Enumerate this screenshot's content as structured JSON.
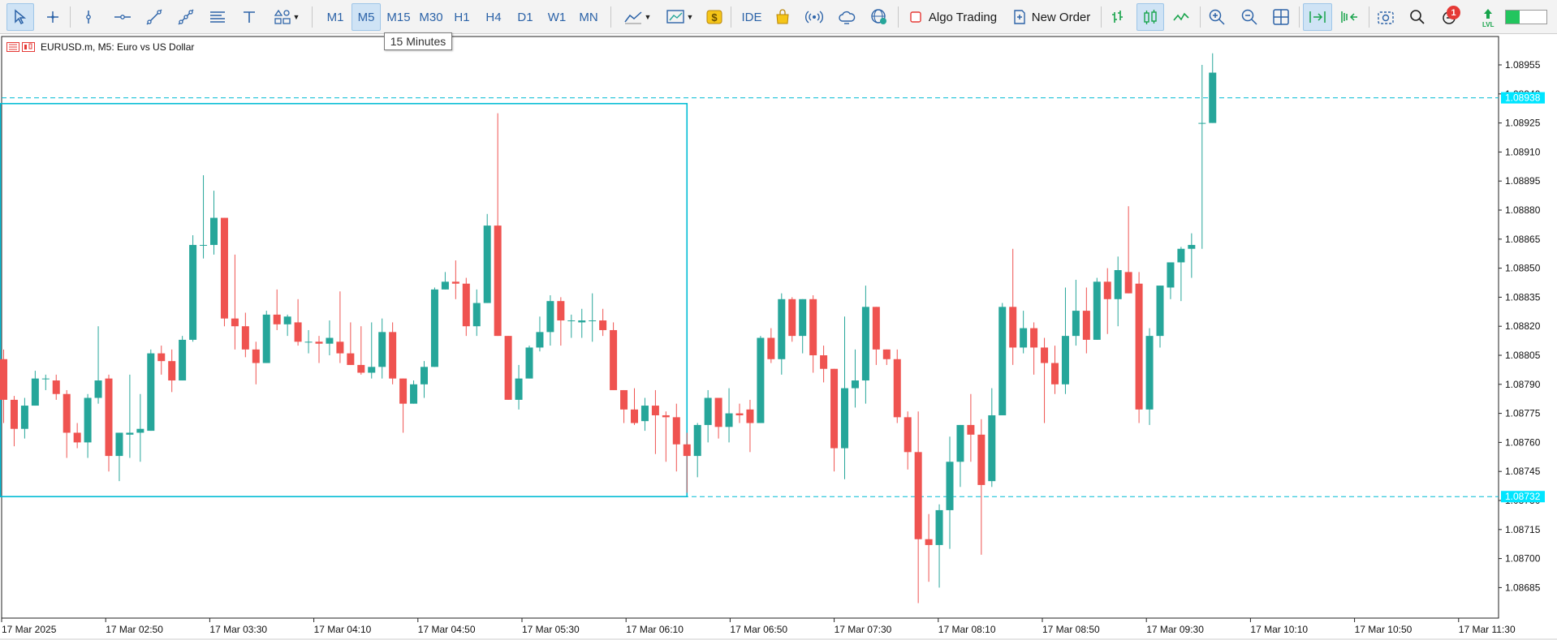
{
  "toolbar": {
    "timeframes": [
      "M1",
      "M5",
      "M15",
      "M30",
      "H1",
      "H4",
      "D1",
      "W1",
      "MN"
    ],
    "active_timeframe": "M5",
    "hover_timeframe": "M15",
    "ide_label": "IDE",
    "algo_label": "Algo Trading",
    "new_order_label": "New Order",
    "notification_count": "1",
    "lvl_label": "LVL"
  },
  "tooltip": {
    "text": "15 Minutes"
  },
  "chart": {
    "title": "EURUSD.m, M5:  Euro vs US Dollar",
    "colors": {
      "bull": "#26a69a",
      "bear": "#ef5350",
      "line": "#00bcd4",
      "label_bg": "#00e5ff"
    }
  },
  "chart_data": {
    "type": "candlestick",
    "symbol": "EURUSD.m",
    "timeframe": "M5",
    "description": "Euro vs US Dollar",
    "y_ticks": [
      "1.08955",
      "1.08940",
      "1.08925",
      "1.08910",
      "1.08895",
      "1.08880",
      "1.08865",
      "1.08850",
      "1.08835",
      "1.08820",
      "1.08805",
      "1.08790",
      "1.08775",
      "1.08760",
      "1.08745",
      "1.08730",
      "1.08715",
      "1.08700",
      "1.08685"
    ],
    "ylim": [
      1.0867,
      1.0897
    ],
    "x_labels": [
      "17 Mar 2025",
      "17 Mar 02:50",
      "17 Mar 03:30",
      "17 Mar 04:10",
      "17 Mar 04:50",
      "17 Mar 05:30",
      "17 Mar 06:10",
      "17 Mar 06:50",
      "17 Mar 07:30",
      "17 Mar 08:10",
      "17 Mar 08:50",
      "17 Mar 09:30",
      "17 Mar 10:10",
      "17 Mar 10:50",
      "17 Mar 11:30"
    ],
    "levels": [
      {
        "price": 1.08938,
        "label": "1.08938"
      },
      {
        "price": 1.08732,
        "label": "1.08732"
      }
    ],
    "range_box": {
      "start_candle": 0,
      "end_candle": 65,
      "high": 1.08935,
      "low": 1.08732
    },
    "candles": [
      [
        1.08803,
        1.08808,
        1.0877,
        1.08782
      ],
      [
        1.08782,
        1.08784,
        1.08758,
        1.08767
      ],
      [
        1.08767,
        1.08783,
        1.08762,
        1.08779
      ],
      [
        1.08779,
        1.08797,
        1.08779,
        1.08793
      ],
      [
        1.08793,
        1.08795,
        1.08787,
        1.08793
      ],
      [
        1.08792,
        1.08795,
        1.08782,
        1.08785
      ],
      [
        1.08785,
        1.08787,
        1.08752,
        1.08765
      ],
      [
        1.08765,
        1.0877,
        1.08757,
        1.0876
      ],
      [
        1.0876,
        1.08785,
        1.08752,
        1.08783
      ],
      [
        1.08783,
        1.0882,
        1.0878,
        1.08792
      ],
      [
        1.08793,
        1.08795,
        1.08745,
        1.08753
      ],
      [
        1.08753,
        1.08765,
        1.0874,
        1.08765
      ],
      [
        1.08764,
        1.08795,
        1.08752,
        1.08765
      ],
      [
        1.08765,
        1.08785,
        1.0875,
        1.08767
      ],
      [
        1.08766,
        1.08808,
        1.08766,
        1.08806
      ],
      [
        1.08806,
        1.0881,
        1.08795,
        1.08802
      ],
      [
        1.08802,
        1.08808,
        1.08786,
        1.08792
      ],
      [
        1.08792,
        1.08815,
        1.08792,
        1.08813
      ],
      [
        1.08813,
        1.08867,
        1.08812,
        1.08862
      ],
      [
        1.08862,
        1.08898,
        1.08855,
        1.08862
      ],
      [
        1.08862,
        1.0889,
        1.08857,
        1.08876
      ],
      [
        1.08876,
        1.08876,
        1.0882,
        1.08824
      ],
      [
        1.08824,
        1.08857,
        1.08808,
        1.0882
      ],
      [
        1.0882,
        1.08827,
        1.08804,
        1.08808
      ],
      [
        1.08808,
        1.08812,
        1.0879,
        1.08801
      ],
      [
        1.08801,
        1.08828,
        1.08801,
        1.08826
      ],
      [
        1.08826,
        1.08839,
        1.08818,
        1.08821
      ],
      [
        1.08821,
        1.08826,
        1.08815,
        1.08825
      ],
      [
        1.08822,
        1.08834,
        1.0881,
        1.08812
      ],
      [
        1.08812,
        1.08818,
        1.08806,
        1.08812
      ],
      [
        1.08812,
        1.08815,
        1.08801,
        1.08811
      ],
      [
        1.08811,
        1.08823,
        1.08805,
        1.08814
      ],
      [
        1.08812,
        1.08838,
        1.08801,
        1.08806
      ],
      [
        1.08806,
        1.08822,
        1.088,
        1.088
      ],
      [
        1.088,
        1.0882,
        1.08795,
        1.08796
      ],
      [
        1.08796,
        1.08822,
        1.08793,
        1.08799
      ],
      [
        1.08799,
        1.08824,
        1.08793,
        1.08817
      ],
      [
        1.08817,
        1.08822,
        1.0879,
        1.08793
      ],
      [
        1.08793,
        1.08793,
        1.08765,
        1.0878
      ],
      [
        1.0878,
        1.08792,
        1.0878,
        1.0879
      ],
      [
        1.0879,
        1.08802,
        1.08783,
        1.08799
      ],
      [
        1.08799,
        1.0884,
        1.08799,
        1.08839
      ],
      [
        1.08839,
        1.08848,
        1.08839,
        1.08843
      ],
      [
        1.08843,
        1.08854,
        1.08834,
        1.08842
      ],
      [
        1.08842,
        1.08845,
        1.08815,
        1.0882
      ],
      [
        1.0882,
        1.08839,
        1.08815,
        1.08832
      ],
      [
        1.08832,
        1.08878,
        1.08832,
        1.08872
      ],
      [
        1.08872,
        1.0893,
        1.08815,
        1.08815
      ],
      [
        1.08815,
        1.08815,
        1.08782,
        1.08782
      ],
      [
        1.08782,
        1.088,
        1.08777,
        1.08793
      ],
      [
        1.08793,
        1.0881,
        1.08793,
        1.08809
      ],
      [
        1.08809,
        1.08825,
        1.08807,
        1.08817
      ],
      [
        1.08817,
        1.08836,
        1.0881,
        1.08833
      ],
      [
        1.08833,
        1.08835,
        1.0881,
        1.08823
      ],
      [
        1.08823,
        1.08826,
        1.08814,
        1.08823
      ],
      [
        1.08822,
        1.08829,
        1.08814,
        1.08823
      ],
      [
        1.08823,
        1.08837,
        1.08812,
        1.08823
      ],
      [
        1.08823,
        1.08829,
        1.08815,
        1.08818
      ],
      [
        1.08818,
        1.08822,
        1.08787,
        1.08787
      ],
      [
        1.08787,
        1.08787,
        1.0877,
        1.08777
      ],
      [
        1.08777,
        1.08788,
        1.08769,
        1.0877
      ],
      [
        1.08771,
        1.08783,
        1.08766,
        1.08779
      ],
      [
        1.08779,
        1.08787,
        1.08754,
        1.08774
      ],
      [
        1.08774,
        1.08776,
        1.0875,
        1.08773
      ],
      [
        1.08773,
        1.0878,
        1.08745,
        1.08759
      ],
      [
        1.08759,
        1.08765,
        1.08734,
        1.08753
      ],
      [
        1.08753,
        1.0877,
        1.08742,
        1.08769
      ],
      [
        1.08769,
        1.08787,
        1.0876,
        1.08783
      ],
      [
        1.08783,
        1.08783,
        1.08762,
        1.08768
      ],
      [
        1.08768,
        1.08788,
        1.0876,
        1.08775
      ],
      [
        1.08775,
        1.0878,
        1.0877,
        1.08774
      ],
      [
        1.08777,
        1.08782,
        1.08755,
        1.0877
      ],
      [
        1.0877,
        1.08815,
        1.0877,
        1.08814
      ],
      [
        1.08814,
        1.08819,
        1.08801,
        1.08803
      ],
      [
        1.08803,
        1.08837,
        1.08795,
        1.08834
      ],
      [
        1.08834,
        1.08835,
        1.08812,
        1.08815
      ],
      [
        1.08815,
        1.08834,
        1.08806,
        1.08834
      ],
      [
        1.08834,
        1.08836,
        1.08796,
        1.08805
      ],
      [
        1.08805,
        1.0881,
        1.08791,
        1.08798
      ],
      [
        1.08798,
        1.08798,
        1.08745,
        1.08757
      ],
      [
        1.08757,
        1.08825,
        1.08741,
        1.08788
      ],
      [
        1.08788,
        1.08808,
        1.08778,
        1.08792
      ],
      [
        1.08792,
        1.08841,
        1.0878,
        1.0883
      ],
      [
        1.0883,
        1.0883,
        1.088,
        1.08808
      ],
      [
        1.08808,
        1.08808,
        1.088,
        1.08803
      ],
      [
        1.08803,
        1.08808,
        1.0877,
        1.08773
      ],
      [
        1.08773,
        1.08776,
        1.08746,
        1.08755
      ],
      [
        1.08755,
        1.08776,
        1.08677,
        1.0871
      ],
      [
        1.0871,
        1.08723,
        1.08688,
        1.08707
      ],
      [
        1.08707,
        1.08728,
        1.08685,
        1.08725
      ],
      [
        1.08725,
        1.08763,
        1.08705,
        1.0875
      ],
      [
        1.0875,
        1.08769,
        1.08737,
        1.08769
      ],
      [
        1.08769,
        1.08785,
        1.0875,
        1.08764
      ],
      [
        1.08764,
        1.08772,
        1.08702,
        1.08738
      ],
      [
        1.0874,
        1.08788,
        1.08737,
        1.08774
      ],
      [
        1.08774,
        1.08832,
        1.08774,
        1.0883
      ],
      [
        1.0883,
        1.0886,
        1.088,
        1.08809
      ],
      [
        1.08809,
        1.08828,
        1.08806,
        1.08819
      ],
      [
        1.08819,
        1.08822,
        1.08795,
        1.08809
      ],
      [
        1.08809,
        1.08814,
        1.0877,
        1.08801
      ],
      [
        1.08801,
        1.0881,
        1.08785,
        1.0879
      ],
      [
        1.0879,
        1.0884,
        1.08785,
        1.08815
      ],
      [
        1.08815,
        1.08844,
        1.0881,
        1.08828
      ],
      [
        1.08828,
        1.0884,
        1.08806,
        1.08813
      ],
      [
        1.08813,
        1.08845,
        1.08813,
        1.08843
      ],
      [
        1.08843,
        1.0885,
        1.08816,
        1.08834
      ],
      [
        1.08834,
        1.08856,
        1.0882,
        1.08849
      ],
      [
        1.08848,
        1.08882,
        1.08837,
        1.08837
      ],
      [
        1.08842,
        1.08848,
        1.0877,
        1.08777
      ],
      [
        1.08777,
        1.08819,
        1.08769,
        1.08815
      ],
      [
        1.08815,
        1.08841,
        1.08809,
        1.08841
      ],
      [
        1.0884,
        1.08852,
        1.08834,
        1.08853
      ],
      [
        1.08853,
        1.08861,
        1.08833,
        1.0886
      ],
      [
        1.0886,
        1.08868,
        1.08845,
        1.08862
      ],
      [
        1.08925,
        1.08955,
        1.0886,
        1.08925
      ],
      [
        1.08925,
        1.08961,
        1.08925,
        1.08951
      ]
    ]
  }
}
